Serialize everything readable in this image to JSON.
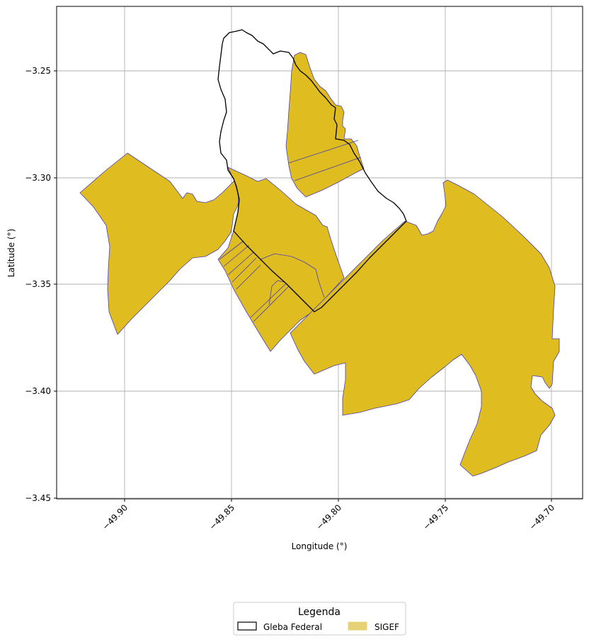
{
  "map": {
    "xlabel": "Longitude (°)",
    "ylabel": "Latitude (°)",
    "x_ticks": [
      "−49.90",
      "−49.85",
      "−49.80",
      "−49.75",
      "−49.70"
    ],
    "y_ticks": [
      "−3.25",
      "−3.30",
      "−3.35",
      "−3.40",
      "−3.45"
    ],
    "grid": true
  },
  "legend": {
    "title": "Legenda",
    "items": [
      {
        "label": "Gleba Federal",
        "fill": "#ffffff",
        "stroke": "#000000"
      },
      {
        "label": "SIGEF",
        "fill": "#e6d175",
        "stroke": "#e6d175"
      }
    ]
  },
  "colors": {
    "sigef_fill": "#dfbc1f",
    "sigef_edge": "#4a3fb5",
    "gleba_edge": "#000000",
    "grid": "#b0b0b0"
  }
}
